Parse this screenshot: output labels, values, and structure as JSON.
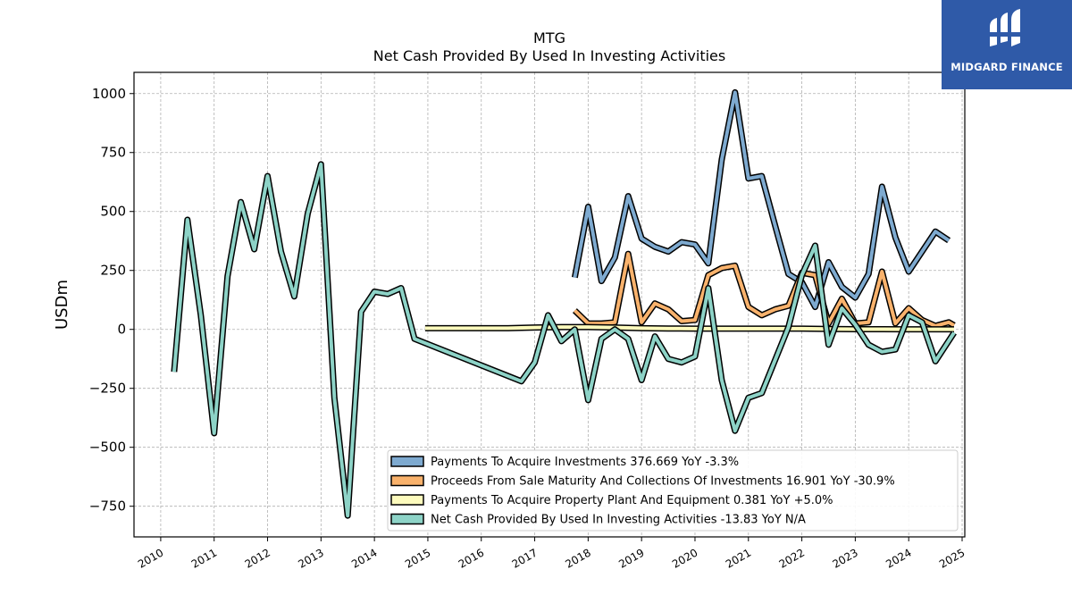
{
  "chart_data": {
    "type": "line",
    "title": "MTG",
    "subtitle": "Net Cash Provided By Used In Investing Activities",
    "ylabel": "USDm",
    "xlabel": "",
    "xlim": [
      2009.5,
      2025.05
    ],
    "ylim": [
      -880,
      1090
    ],
    "x_ticks": [
      "2010",
      "2011",
      "2012",
      "2013",
      "2014",
      "2015",
      "2016",
      "2017",
      "2018",
      "2019",
      "2020",
      "2021",
      "2022",
      "2023",
      "2024",
      "2025"
    ],
    "y_ticks": [
      -750,
      -500,
      -250,
      0,
      250,
      500,
      750,
      1000
    ],
    "y_tick_labels": [
      "−750",
      "−500",
      "−250",
      "0",
      "250",
      "500",
      "750",
      "1000"
    ],
    "grid": true,
    "legend_position": "lower-right",
    "series": [
      {
        "name": "Payments To Acquire Investments",
        "legend_label": "Payments To Acquire Investments  376.669 YoY -3.3%",
        "color": "#7eaad0",
        "points": [
          [
            2017.75,
            220
          ],
          [
            2018.0,
            520
          ],
          [
            2018.25,
            205
          ],
          [
            2018.5,
            305
          ],
          [
            2018.75,
            565
          ],
          [
            2019.0,
            385
          ],
          [
            2019.25,
            350
          ],
          [
            2019.5,
            330
          ],
          [
            2019.75,
            370
          ],
          [
            2020.0,
            360
          ],
          [
            2020.25,
            280
          ],
          [
            2020.5,
            720
          ],
          [
            2020.75,
            1005
          ],
          [
            2021.0,
            640
          ],
          [
            2021.25,
            650
          ],
          [
            2021.5,
            440
          ],
          [
            2021.75,
            235
          ],
          [
            2022.0,
            200
          ],
          [
            2022.25,
            95
          ],
          [
            2022.5,
            285
          ],
          [
            2022.75,
            180
          ],
          [
            2023.0,
            135
          ],
          [
            2023.25,
            235
          ],
          [
            2023.5,
            605
          ],
          [
            2023.75,
            390
          ],
          [
            2024.0,
            245
          ],
          [
            2024.5,
            415
          ],
          [
            2024.75,
            377
          ]
        ]
      },
      {
        "name": "Proceeds From Sale Maturity And Collections Of Investments",
        "legend_label": "Proceeds From Sale Maturity And Collections Of Investments  16.901 YoY -30.9%",
        "color": "#f9b26c",
        "points": [
          [
            2017.75,
            80
          ],
          [
            2018.0,
            25
          ],
          [
            2018.25,
            25
          ],
          [
            2018.5,
            30
          ],
          [
            2018.75,
            320
          ],
          [
            2019.0,
            30
          ],
          [
            2019.25,
            110
          ],
          [
            2019.5,
            85
          ],
          [
            2019.75,
            35
          ],
          [
            2020.0,
            40
          ],
          [
            2020.25,
            230
          ],
          [
            2020.5,
            260
          ],
          [
            2020.75,
            270
          ],
          [
            2021.0,
            95
          ],
          [
            2021.25,
            60
          ],
          [
            2021.5,
            85
          ],
          [
            2021.75,
            100
          ],
          [
            2022.0,
            240
          ],
          [
            2022.25,
            230
          ],
          [
            2022.5,
            25
          ],
          [
            2022.75,
            130
          ],
          [
            2023.0,
            25
          ],
          [
            2023.25,
            30
          ],
          [
            2023.5,
            245
          ],
          [
            2023.75,
            25
          ],
          [
            2024.0,
            90
          ],
          [
            2024.25,
            40
          ],
          [
            2024.5,
            15
          ],
          [
            2024.75,
            30
          ],
          [
            2024.85,
            17
          ]
        ]
      },
      {
        "name": "Payments To Acquire Property Plant And Equipment",
        "legend_label": "Payments To Acquire Property Plant And Equipment  0.381 YoY +5.0%",
        "color": "#fdfbbd",
        "points": [
          [
            2014.95,
            5
          ],
          [
            2015.5,
            5
          ],
          [
            2016.0,
            5
          ],
          [
            2016.5,
            5
          ],
          [
            2017.0,
            8
          ],
          [
            2017.5,
            10
          ],
          [
            2018.0,
            10
          ],
          [
            2018.5,
            8
          ],
          [
            2019.0,
            5
          ],
          [
            2019.5,
            4
          ],
          [
            2020.0,
            3
          ],
          [
            2020.5,
            3
          ],
          [
            2021.0,
            3
          ],
          [
            2021.5,
            3
          ],
          [
            2022.0,
            3
          ],
          [
            2022.5,
            2
          ],
          [
            2023.0,
            1
          ],
          [
            2023.5,
            1
          ],
          [
            2024.0,
            0.5
          ],
          [
            2024.5,
            0.4
          ],
          [
            2024.85,
            0.4
          ]
        ]
      },
      {
        "name": "Net Cash Provided By Used In Investing Activities",
        "legend_label": "Net Cash Provided By Used In Investing Activities  -13.83 YoY N/A",
        "color": "#8dd3c7",
        "points": [
          [
            2010.25,
            -180
          ],
          [
            2010.5,
            465
          ],
          [
            2010.75,
            60
          ],
          [
            2011.0,
            -440
          ],
          [
            2011.25,
            225
          ],
          [
            2011.5,
            540
          ],
          [
            2011.75,
            340
          ],
          [
            2012.0,
            650
          ],
          [
            2012.25,
            330
          ],
          [
            2012.5,
            140
          ],
          [
            2012.75,
            490
          ],
          [
            2013.0,
            700
          ],
          [
            2013.25,
            -290
          ],
          [
            2013.5,
            -790
          ],
          [
            2013.75,
            75
          ],
          [
            2014.0,
            160
          ],
          [
            2014.25,
            150
          ],
          [
            2014.5,
            175
          ],
          [
            2014.75,
            -40
          ],
          [
            2016.75,
            -220
          ],
          [
            2017.0,
            -140
          ],
          [
            2017.25,
            60
          ],
          [
            2017.5,
            -50
          ],
          [
            2017.75,
            0
          ],
          [
            2018.0,
            -300
          ],
          [
            2018.25,
            -40
          ],
          [
            2018.5,
            0
          ],
          [
            2018.75,
            -40
          ],
          [
            2019.0,
            -215
          ],
          [
            2019.25,
            -30
          ],
          [
            2019.5,
            -125
          ],
          [
            2019.75,
            -140
          ],
          [
            2020.0,
            -115
          ],
          [
            2020.25,
            175
          ],
          [
            2020.5,
            -215
          ],
          [
            2020.75,
            -430
          ],
          [
            2021.0,
            -290
          ],
          [
            2021.25,
            -270
          ],
          [
            2021.75,
            10
          ],
          [
            2022.0,
            230
          ],
          [
            2022.25,
            355
          ],
          [
            2022.5,
            -65
          ],
          [
            2022.75,
            90
          ],
          [
            2023.0,
            20
          ],
          [
            2023.25,
            -65
          ],
          [
            2023.5,
            -95
          ],
          [
            2023.75,
            -85
          ],
          [
            2024.0,
            60
          ],
          [
            2024.25,
            30
          ],
          [
            2024.5,
            -135
          ],
          [
            2024.85,
            -14
          ]
        ]
      }
    ]
  },
  "logo": {
    "text": "MIDGARD FINANCE",
    "color": "#2f5aa8"
  }
}
